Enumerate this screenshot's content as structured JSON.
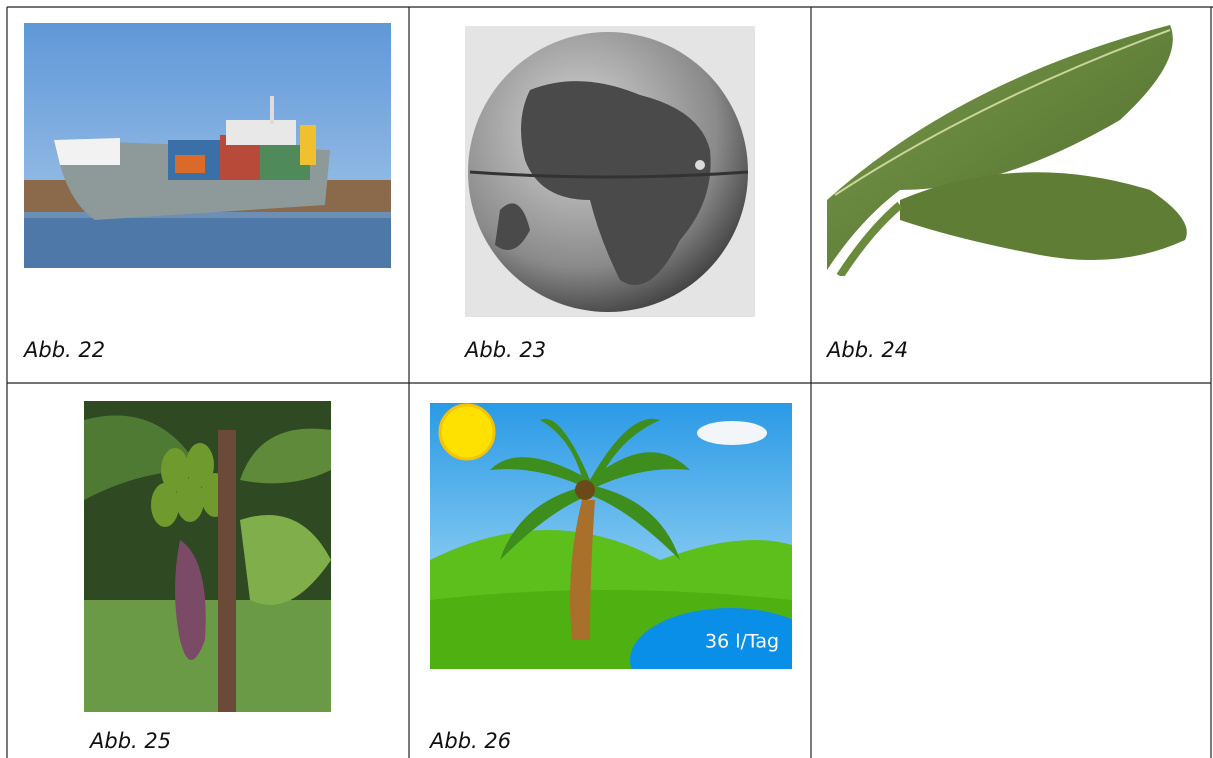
{
  "figures": [
    {
      "caption": "Abb. 22"
    },
    {
      "caption": "Abb. 23"
    },
    {
      "caption": "Abb. 24"
    },
    {
      "caption": "Abb. 25"
    },
    {
      "caption": "Abb. 26",
      "label": "36 l/Tag"
    }
  ]
}
